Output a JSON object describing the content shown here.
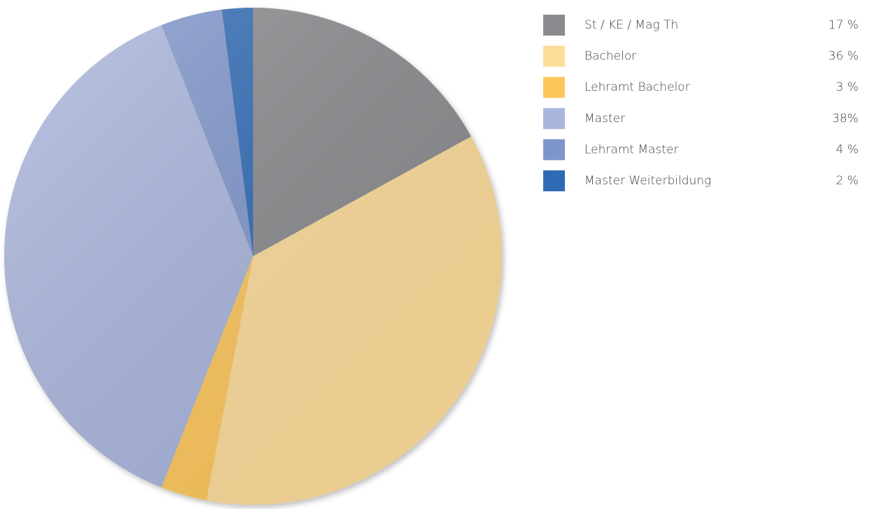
{
  "chart_data": {
    "type": "pie",
    "categories": [
      "St / KE / Mag Th",
      "Bachelor",
      "Lehramt Bachelor",
      "Master",
      "Lehramt Master",
      "Master Weiterbildung"
    ],
    "values": [
      17,
      36,
      3,
      38,
      4,
      2
    ],
    "value_labels": [
      "17 %",
      "36 %",
      "3 %",
      "38%",
      "4 %",
      "2 %"
    ],
    "colors": [
      "#8a8b8e",
      "#fddc9a",
      "#fec75b",
      "#a9b5dc",
      "#7f96cc",
      "#2f6ab5"
    ],
    "legend": "right"
  }
}
